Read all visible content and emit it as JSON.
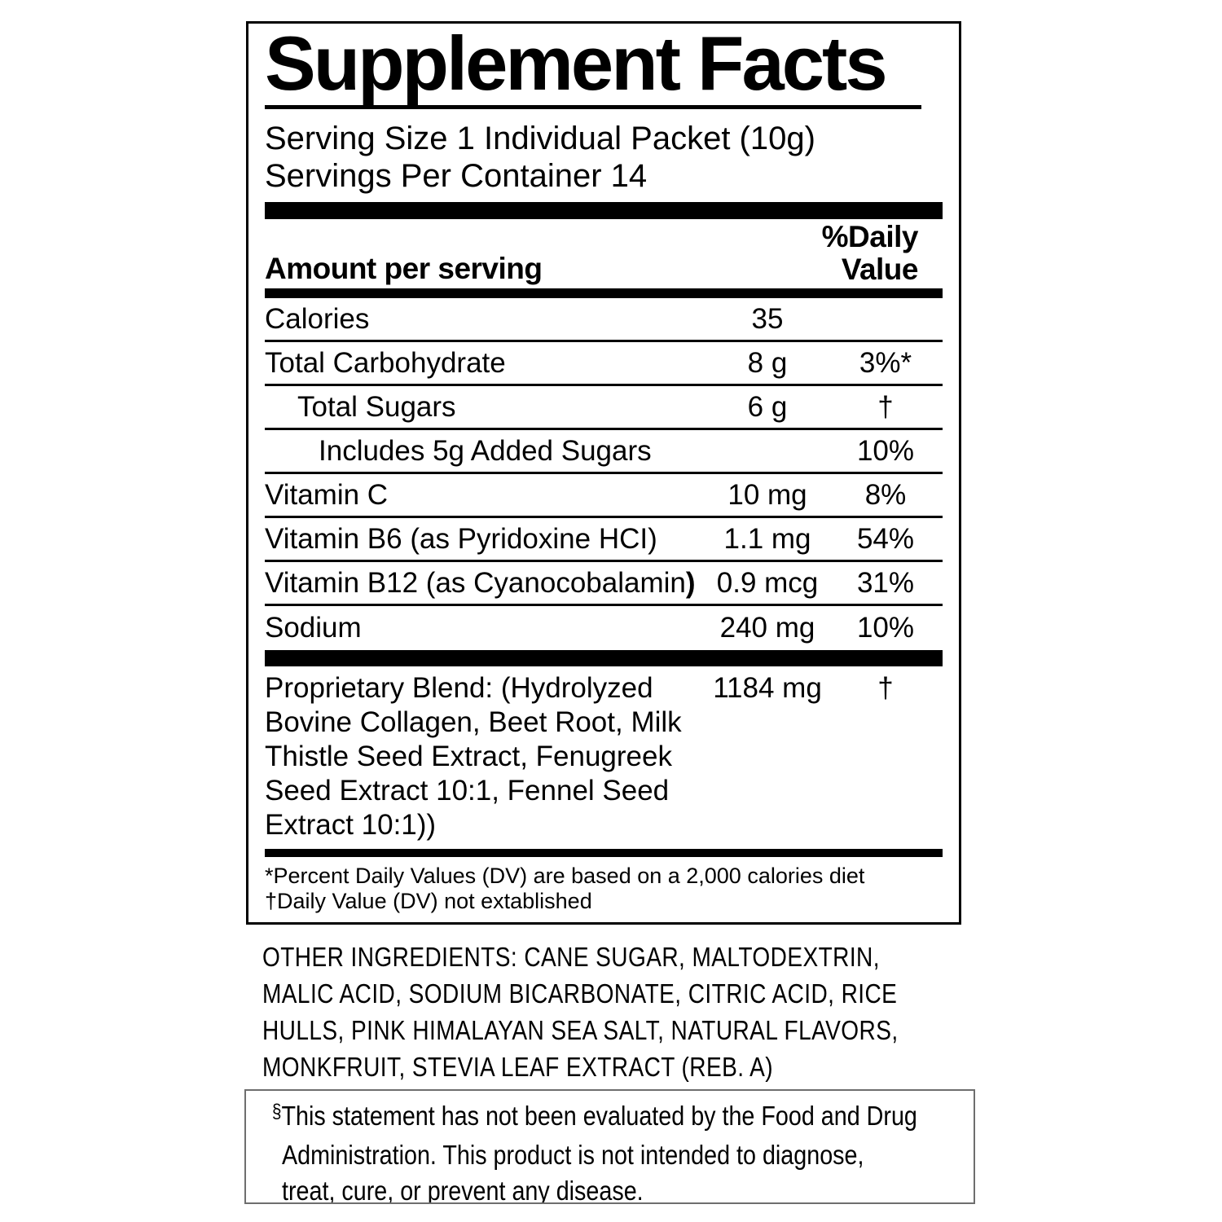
{
  "panel": {
    "title": "Supplement Facts",
    "serving_size": "Serving Size 1 Individual Packet (10g)",
    "servings_per_container": "Servings Per Container 14",
    "header": {
      "amount_label": "Amount per serving",
      "dv_line1": "%Daily",
      "dv_line2": "Value"
    },
    "rows": [
      {
        "name": "Calories",
        "amount": "35",
        "dv": ""
      },
      {
        "name": "Total Carbohydrate",
        "amount": "8 g",
        "dv": "3%*"
      },
      {
        "name": "Total Sugars",
        "amount": "6 g",
        "dv": "†"
      },
      {
        "name": "Includes 5g Added Sugars",
        "amount": "",
        "dv": "10%"
      },
      {
        "name": "Vitamin C",
        "amount": "10 mg",
        "dv": "8%"
      },
      {
        "name": "Vitamin B6 (as Pyridoxine HCI)",
        "amount": "1.1 mg",
        "dv": "54%"
      },
      {
        "name": "Vitamin B12 (as Cyanocobalamin",
        "name_bold_suffix": ")",
        "amount": "0.9 mcg",
        "dv": "31%"
      },
      {
        "name": "Sodium",
        "amount": "240 mg",
        "dv": "10%"
      }
    ],
    "proprietary_blend": {
      "first_line": "Proprietary Blend: (Hydrolyzed",
      "amount": "1184 mg",
      "dv": "†",
      "continuation_lines": [
        "Bovine Collagen, Beet Root, Milk",
        "Thistle Seed Extract, Fenugreek",
        "Seed Extract 10:1, Fennel Seed",
        "Extract 10:1))"
      ]
    },
    "footnotes": [
      "*Percent Daily Values (DV) are based on a 2,000 calories diet",
      "†Daily Value (DV) not extablished"
    ]
  },
  "other_ingredients": {
    "lines": [
      "OTHER INGREDIENTS: CANE SUGAR, MALTODEXTRIN,",
      "MALIC ACID, SODIUM BICARBONATE, CITRIC ACID, RICE",
      "HULLS, PINK HIMALAYAN SEA SALT, NATURAL FLAVORS,",
      "MONKFRUIT, STEVIA LEAF EXTRACT (REB. A)"
    ]
  },
  "disclaimer": {
    "symbol": "§",
    "lines": [
      "This statement has not been evaluated by the Food and Drug",
      "Administration. This product is not intended to diagnose,",
      "treat, cure, or prevent any disease."
    ]
  }
}
